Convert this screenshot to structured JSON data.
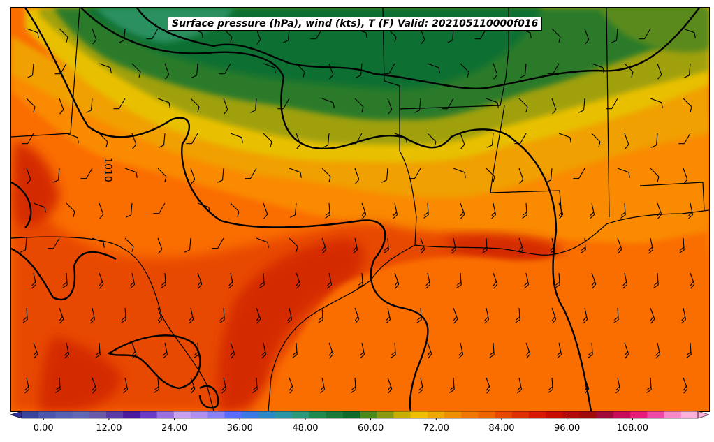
{
  "title": "Surface pressure (hPa), wind (kts), T (F) Valid: 202105110000f016",
  "isobar_label": "1010",
  "colorbar": {
    "min": -4,
    "max": 120,
    "step": 3,
    "extend": "both",
    "ticks": [
      "0.00",
      "12.00",
      "24.00",
      "36.00",
      "48.00",
      "60.00",
      "72.00",
      "84.00",
      "96.00",
      "108.00"
    ],
    "tick_values": [
      0,
      12,
      24,
      36,
      48,
      60,
      72,
      84,
      96,
      108
    ],
    "colors": [
      "#3a44a0",
      "#4b55b0",
      "#5660b4",
      "#6268b8",
      "#6a5aaa",
      "#5c3aa8",
      "#4a1aa0",
      "#6a3ac8",
      "#9a70e0",
      "#c8a0f0",
      "#b090f4",
      "#8a80f8",
      "#5a6cfc",
      "#3a78e8",
      "#2a8ac8",
      "#2a96a8",
      "#2a9a7a",
      "#1f8a4e",
      "#1a7a3a",
      "#0c6a2a",
      "#4a8a1a",
      "#8a9a10",
      "#c8b000",
      "#f0c000",
      "#f0a800",
      "#f09000",
      "#f07800",
      "#f06400",
      "#e84800",
      "#e03000",
      "#d81800",
      "#c80c00",
      "#b40a0a",
      "#a00a0a",
      "#a00a3a",
      "#c80a5a",
      "#e81a7a",
      "#f048a8",
      "#f888c8",
      "#fcb0dc"
    ],
    "under_color": "#3030a0",
    "over_color": "#fcb0dc"
  },
  "map_colors": {
    "hot_red": "#d42a00",
    "red_orange": "#e84a00",
    "orange": "#fa6e00",
    "orange_light": "#fa8a00",
    "amber": "#f0a000",
    "yellow": "#e8c000",
    "olive": "#a0a010",
    "green_light": "#5a8a1a",
    "green": "#2a7a2a",
    "green_dark": "#107030",
    "teal_green": "#2a9060"
  }
}
